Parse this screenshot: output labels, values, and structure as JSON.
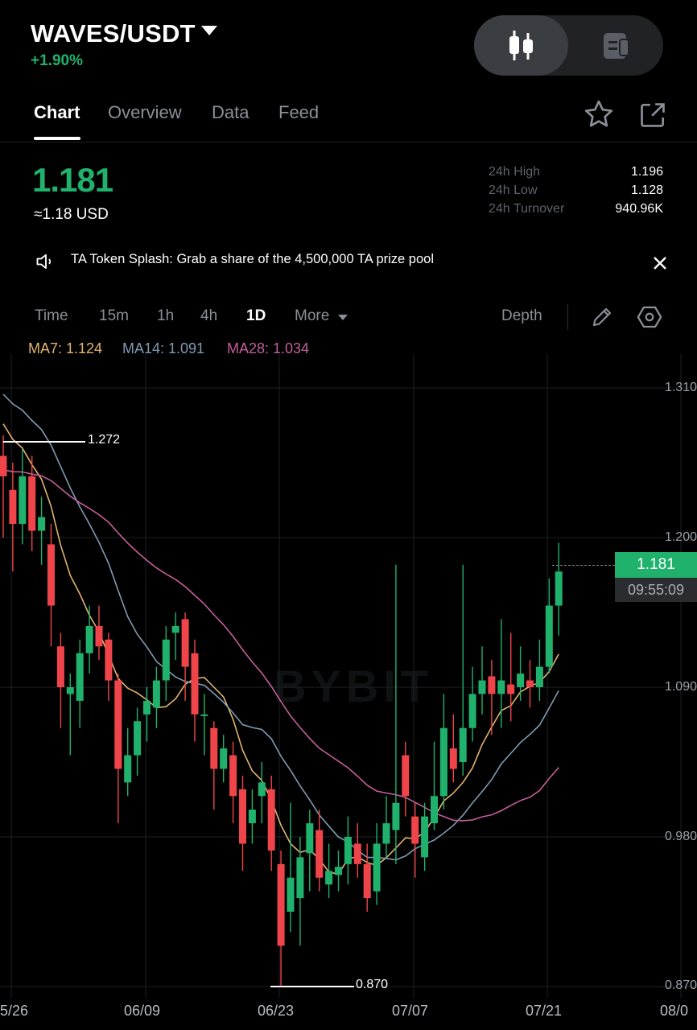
{
  "header": {
    "pair": "WAVES/USDT",
    "change": "+1.90%",
    "view_toggle": {
      "candles_icon": "candlestick-icon",
      "list_icon": "news-icon"
    }
  },
  "tabs": [
    {
      "label": "Chart",
      "active": true
    },
    {
      "label": "Overview",
      "active": false
    },
    {
      "label": "Data",
      "active": false
    },
    {
      "label": "Feed",
      "active": false
    }
  ],
  "ticker": {
    "last_price": "1.181",
    "usd_value": "≈1.18 USD",
    "stats": [
      {
        "label": "24h High",
        "value": "1.196"
      },
      {
        "label": "24h Low",
        "value": "1.128"
      },
      {
        "label": "24h Turnover",
        "value": "940.96K"
      }
    ]
  },
  "notice": {
    "text": "TA Token Splash: Grab a share of the 4,500,000 TA prize pool"
  },
  "timeframes": {
    "items": [
      "Time",
      "15m",
      "1h",
      "4h",
      "1D",
      "More"
    ],
    "active": "1D",
    "depth": "Depth"
  },
  "ma_legend": {
    "ma7": "MA7: 1.124",
    "ma14": "MA14: 1.091",
    "ma28": "MA28: 1.034"
  },
  "colors": {
    "up": "#20b26c",
    "down": "#ef454a",
    "ma7": "#e3b46d",
    "ma14": "#7f9bb3",
    "ma28": "#c35f9c"
  },
  "watermark": "BYBIT",
  "chart_data": {
    "type": "candlestick",
    "y_ticks": [
      "1.310",
      "1.200",
      "1.090",
      "0.980",
      "0.870"
    ],
    "ylim": [
      0.87,
      1.31
    ],
    "x_ticks": [
      "5/26",
      "06/09",
      "06/23",
      "07/07",
      "07/21",
      "08/0"
    ],
    "current_price_tag": "1.181",
    "countdown": "09:55:09",
    "high_marker": "1.272",
    "low_marker": "0.870",
    "candles": [
      [
        1.26,
        1.245,
        1.275,
        1.2
      ],
      [
        1.235,
        1.21,
        1.255,
        1.175
      ],
      [
        1.21,
        1.245,
        1.265,
        1.195
      ],
      [
        1.245,
        1.205,
        1.26,
        1.19
      ],
      [
        1.205,
        1.215,
        1.23,
        1.18
      ],
      [
        1.195,
        1.15,
        1.21,
        1.12
      ],
      [
        1.12,
        1.09,
        1.13,
        1.06
      ],
      [
        1.085,
        1.09,
        1.1,
        1.04
      ],
      [
        1.08,
        1.115,
        1.125,
        1.06
      ],
      [
        1.115,
        1.135,
        1.15,
        1.1
      ],
      [
        1.135,
        1.12,
        1.15,
        1.11
      ],
      [
        1.125,
        1.095,
        1.13,
        1.08
      ],
      [
        1.095,
        1.03,
        1.1,
        0.99
      ],
      [
        1.02,
        1.04,
        1.06,
        1.01
      ],
      [
        1.04,
        1.065,
        1.075,
        1.025
      ],
      [
        1.07,
        1.08,
        1.09,
        1.05
      ],
      [
        1.075,
        1.095,
        1.105,
        1.06
      ],
      [
        1.095,
        1.125,
        1.135,
        1.08
      ],
      [
        1.13,
        1.135,
        1.145,
        1.11
      ],
      [
        1.14,
        1.105,
        1.145,
        1.08
      ],
      [
        1.115,
        1.07,
        1.125,
        1.05
      ],
      [
        1.07,
        1.07,
        1.085,
        1.04
      ],
      [
        1.06,
        1.03,
        1.065,
        1.0
      ],
      [
        1.03,
        1.045,
        1.055,
        1.02
      ],
      [
        1.04,
        1.01,
        1.05,
        0.99
      ],
      [
        1.015,
        0.975,
        1.025,
        0.955
      ],
      [
        0.99,
        1.0,
        1.015,
        0.975
      ],
      [
        1.01,
        1.02,
        1.035,
        0.99
      ],
      [
        1.015,
        0.97,
        1.025,
        0.955
      ],
      [
        0.96,
        0.9,
        0.97,
        0.87
      ],
      [
        0.925,
        0.95,
        1.005,
        0.91
      ],
      [
        0.935,
        0.965,
        0.98,
        0.9
      ],
      [
        0.968,
        0.99,
        1.0,
        0.94
      ],
      [
        0.985,
        0.95,
        1.0,
        0.94
      ],
      [
        0.945,
        0.955,
        0.975,
        0.935
      ],
      [
        0.952,
        0.958,
        0.97,
        0.94
      ],
      [
        0.96,
        0.98,
        0.995,
        0.945
      ],
      [
        0.975,
        0.96,
        0.99,
        0.95
      ],
      [
        0.96,
        0.935,
        0.975,
        0.925
      ],
      [
        0.94,
        0.975,
        0.99,
        0.93
      ],
      [
        0.975,
        0.99,
        1.01,
        0.965
      ],
      [
        0.985,
        1.005,
        1.18,
        0.96
      ],
      [
        1.04,
        1.01,
        1.05,
        0.995
      ],
      [
        0.995,
        0.975,
        1.005,
        0.95
      ],
      [
        0.965,
        0.995,
        1.005,
        0.955
      ],
      [
        0.99,
        1.01,
        1.05,
        0.985
      ],
      [
        1.01,
        1.06,
        1.085,
        1.0
      ],
      [
        1.045,
        1.03,
        1.07,
        1.02
      ],
      [
        1.035,
        1.06,
        1.18,
        1.025
      ],
      [
        1.06,
        1.085,
        1.105,
        1.05
      ],
      [
        1.085,
        1.095,
        1.12,
        1.07
      ],
      [
        1.098,
        1.085,
        1.11,
        1.055
      ],
      [
        1.085,
        1.095,
        1.14,
        1.06
      ],
      [
        1.092,
        1.085,
        1.13,
        1.065
      ],
      [
        1.09,
        1.1,
        1.12,
        1.08
      ],
      [
        1.095,
        1.09,
        1.11,
        1.075
      ],
      [
        1.09,
        1.105,
        1.125,
        1.08
      ],
      [
        1.105,
        1.15,
        1.17,
        1.1
      ],
      [
        1.15,
        1.175,
        1.196,
        1.128
      ]
    ]
  }
}
